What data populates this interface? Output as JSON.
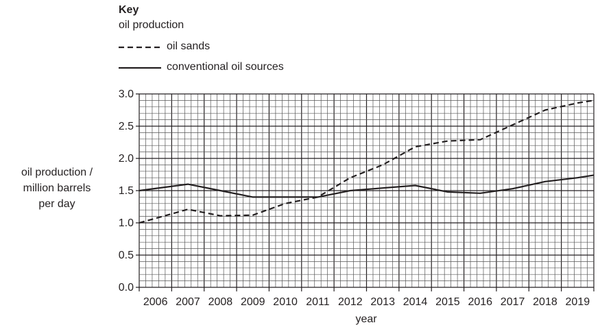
{
  "chart_data": {
    "type": "line",
    "key_title": "Key",
    "key_subtitle": "oil production",
    "ylabel": "oil production / million barrels per day",
    "ylabel_lines": [
      "oil production /",
      "million barrels",
      "per day"
    ],
    "xlabel": "year",
    "xlim": [
      2005.5,
      2019.5
    ],
    "ylim": [
      0,
      3.0
    ],
    "x_ticks": [
      "2006",
      "2007",
      "2008",
      "2009",
      "2010",
      "2011",
      "2012",
      "2013",
      "2014",
      "2015",
      "2016",
      "2017",
      "2018",
      "2019"
    ],
    "y_ticks": [
      "0.0",
      "0.5",
      "1.0",
      "1.5",
      "2.0",
      "2.5",
      "3.0"
    ],
    "grid": true,
    "legend_position": "top-left above chart",
    "series": [
      {
        "name": "oil sands",
        "style": "dashed",
        "x": [
          2005.5,
          2007,
          2008,
          2009,
          2010,
          2011,
          2012,
          2013,
          2014,
          2015,
          2016,
          2017,
          2018,
          2019,
          2019.5
        ],
        "y": [
          1.0,
          1.21,
          1.11,
          1.12,
          1.3,
          1.4,
          1.7,
          1.9,
          2.18,
          2.27,
          2.29,
          2.52,
          2.75,
          2.86,
          2.9
        ]
      },
      {
        "name": "conventional oil sources",
        "style": "solid",
        "x": [
          2005.5,
          2007,
          2008,
          2009,
          2010,
          2011,
          2012,
          2013,
          2014,
          2015,
          2016,
          2017,
          2018,
          2019,
          2019.5
        ],
        "y": [
          1.5,
          1.6,
          1.5,
          1.4,
          1.4,
          1.4,
          1.5,
          1.54,
          1.58,
          1.48,
          1.46,
          1.53,
          1.64,
          1.7,
          1.74
        ]
      }
    ],
    "colors": {
      "line": "#231f20",
      "grid_major": "#231f20",
      "grid_minor": "#555555"
    }
  }
}
